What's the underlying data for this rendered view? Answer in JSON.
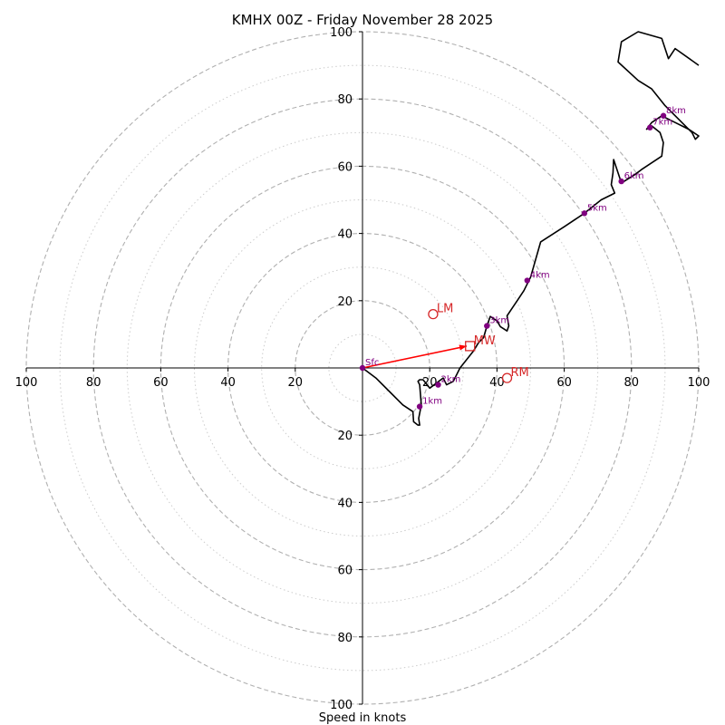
{
  "chart_data": {
    "type": "scatter",
    "subtype": "hodograph",
    "title": "KMHX 00Z - Friday November 28 2025",
    "xlabel": "Speed in knots",
    "ylabel": "",
    "xlim": [
      -100,
      100
    ],
    "ylim": [
      -100,
      100
    ],
    "dashed_rings": [
      20,
      40,
      60,
      80,
      100
    ],
    "dotted_rings": [
      10,
      30,
      50,
      70,
      90
    ],
    "x_tick_labels": [
      "100",
      "80",
      "60",
      "40",
      "20",
      "20",
      "40",
      "60",
      "80",
      "100"
    ],
    "x_tick_values": [
      -100,
      -80,
      -60,
      -40,
      -20,
      20,
      40,
      60,
      80,
      100
    ],
    "y_tick_labels": [
      "100",
      "80",
      "60",
      "40",
      "20",
      "20",
      "40",
      "60",
      "80",
      "100"
    ],
    "y_tick_values": [
      100,
      80,
      60,
      40,
      20,
      -20,
      -40,
      -60,
      -80,
      -100
    ],
    "colors": {
      "trace": "#000000",
      "height_marker": "#800080",
      "motion": "#d62728",
      "shear_vector": "#ff0000",
      "ring": "#b0b0b0"
    },
    "wind_trace": {
      "u": [
        0,
        4,
        8,
        12,
        15,
        15.2,
        16.5,
        17,
        16.7,
        17.5,
        17,
        16.5,
        17,
        18,
        20,
        24,
        25,
        27,
        29,
        33,
        34.5,
        36,
        37,
        38,
        40,
        41,
        43,
        43.5,
        43,
        44,
        46,
        48,
        50,
        53,
        60,
        66,
        71,
        75,
        74,
        74.5,
        74.7,
        77,
        81,
        83,
        89,
        89.5,
        88.5,
        86,
        84.5,
        86,
        89,
        93,
        97,
        100,
        99,
        98,
        90,
        86,
        82,
        76,
        77,
        82,
        89,
        91,
        93,
        100
      ],
      "v": [
        0,
        -3,
        -7,
        -11,
        -13,
        -16,
        -17,
        -17,
        -15,
        -11,
        -5,
        -4,
        -3.5,
        -3.5,
        -6,
        -3,
        -5,
        -4,
        0,
        5,
        7.5,
        9,
        12.5,
        15.3,
        14,
        12.3,
        11,
        12.5,
        15.5,
        17,
        20,
        23,
        27,
        37.5,
        42,
        46,
        50,
        52,
        54.5,
        58,
        62,
        55,
        57.5,
        59,
        63,
        67,
        70,
        72,
        71,
        73,
        75,
        73,
        71,
        69,
        68,
        70,
        78,
        83,
        85.5,
        91,
        97,
        100,
        98,
        92,
        95,
        90
      ]
    },
    "height_markers": [
      {
        "label": "Sfc",
        "u": 0,
        "v": 0
      },
      {
        "label": "1km",
        "u": 17,
        "v": -11.5
      },
      {
        "label": "2km",
        "u": 22.5,
        "v": -5
      },
      {
        "label": "3km",
        "u": 37,
        "v": 12.5
      },
      {
        "label": "4km",
        "u": 49,
        "v": 26
      },
      {
        "label": "5km",
        "u": 66,
        "v": 46
      },
      {
        "label": "6km",
        "u": 77,
        "v": 55.5
      },
      {
        "label": "7km",
        "u": 85.5,
        "v": 71.5
      },
      {
        "label": "8km",
        "u": 89.5,
        "v": 75
      }
    ],
    "storm_motion": [
      {
        "label": "LM",
        "u": 21,
        "v": 16,
        "marker": "circle"
      },
      {
        "label": "RM",
        "u": 43,
        "v": -3,
        "marker": "circle"
      },
      {
        "label": "MW",
        "u": 32,
        "v": 6.5,
        "marker": "square"
      }
    ],
    "shear_vector": {
      "from": [
        0,
        0
      ],
      "to": [
        31,
        6.5
      ]
    }
  }
}
